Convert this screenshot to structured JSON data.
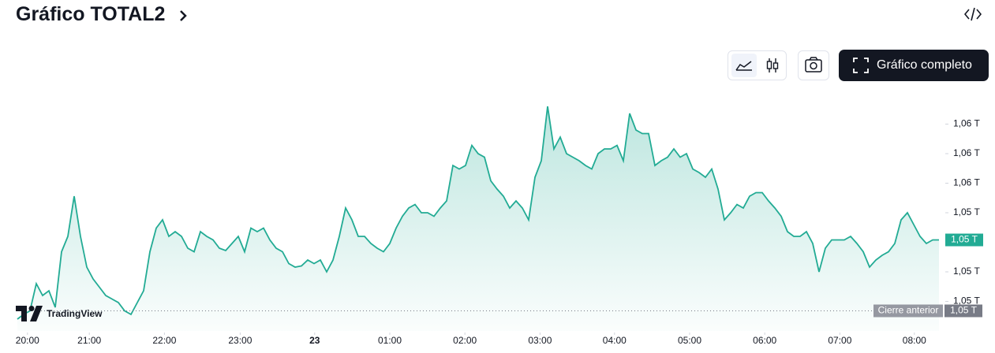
{
  "header": {
    "title": "Gráfico TOTAL2",
    "button": "Gráfico completo"
  },
  "chart_data": {
    "type": "line",
    "color": "#22ab94",
    "values": [
      1.046,
      1.0464,
      1.0467,
      1.049,
      1.048,
      1.0484,
      1.047,
      1.0517,
      1.053,
      1.0564,
      1.053,
      1.0504,
      1.0494,
      1.0487,
      1.048,
      1.0477,
      1.0474,
      1.0467,
      1.0464,
      1.0474,
      1.0484,
      1.0517,
      1.0537,
      1.0544,
      1.053,
      1.0534,
      1.053,
      1.052,
      1.0517,
      1.0534,
      1.053,
      1.0527,
      1.052,
      1.0518,
      1.0524,
      1.053,
      1.0517,
      1.0537,
      1.0534,
      1.0537,
      1.0527,
      1.052,
      1.0517,
      1.0507,
      1.0504,
      1.0505,
      1.051,
      1.0507,
      1.051,
      1.05,
      1.051,
      1.053,
      1.0554,
      1.0544,
      1.053,
      1.053,
      1.0524,
      1.052,
      1.0517,
      1.0524,
      1.0537,
      1.0547,
      1.0554,
      1.0557,
      1.055,
      1.055,
      1.0547,
      1.0554,
      1.056,
      1.059,
      1.0587,
      1.059,
      1.0607,
      1.06,
      1.0597,
      1.0577,
      1.057,
      1.0564,
      1.0554,
      1.056,
      1.0554,
      1.0544,
      1.058,
      1.0594,
      1.064,
      1.0604,
      1.0614,
      1.06,
      1.0597,
      1.0594,
      1.059,
      1.0587,
      1.06,
      1.0604,
      1.0604,
      1.0607,
      1.0594,
      1.0634,
      1.062,
      1.0617,
      1.0617,
      1.059,
      1.0594,
      1.0597,
      1.0604,
      1.0597,
      1.06,
      1.0587,
      1.0584,
      1.058,
      1.0587,
      1.057,
      1.0544,
      1.055,
      1.0557,
      1.0554,
      1.0564,
      1.0567,
      1.0567,
      1.056,
      1.0554,
      1.0547,
      1.0534,
      1.053,
      1.053,
      1.0534,
      1.0524,
      1.05,
      1.052,
      1.0527,
      1.0527,
      1.0527,
      1.053,
      1.0524,
      1.0517,
      1.0504,
      1.051,
      1.0514,
      1.0517,
      1.0524,
      1.0544,
      1.055,
      1.054,
      1.053,
      1.0524,
      1.0527,
      1.0527
    ],
    "xlim": [
      0,
      146
    ],
    "xticks": [
      {
        "value": 1.6,
        "label": "20:00"
      },
      {
        "value": 11.4,
        "label": "21:00"
      },
      {
        "value": 23.3,
        "label": "22:00"
      },
      {
        "value": 35.3,
        "label": "23:00"
      },
      {
        "value": 47.1,
        "label": "23"
      },
      {
        "value": 59,
        "label": "01:00"
      },
      {
        "value": 70.9,
        "label": "02:00"
      },
      {
        "value": 82.8,
        "label": "03:00"
      },
      {
        "value": 94.6,
        "label": "04:00"
      },
      {
        "value": 106.5,
        "label": "05:00"
      },
      {
        "value": 118.4,
        "label": "06:00"
      },
      {
        "value": 130.3,
        "label": "07:00"
      },
      {
        "value": 142.1,
        "label": "08:00"
      }
    ],
    "ylim": [
      1.045,
      1.065
    ],
    "yticks": [
      {
        "value": 1.0625,
        "label": "1,06 T"
      },
      {
        "value": 1.06,
        "label": "1,06 T"
      },
      {
        "value": 1.0575,
        "label": "1,06 T"
      },
      {
        "value": 1.055,
        "label": "1,05 T"
      },
      {
        "value": 1.05,
        "label": "1,05 T"
      },
      {
        "value": 1.0475,
        "label": "1,05 T"
      }
    ],
    "last_price": {
      "value": 1.0527,
      "label": "1,05 T"
    },
    "previous_close": {
      "value": 1.0467,
      "label": "1,05 T",
      "name": "Cierre anterior"
    },
    "logo": "TradingView"
  }
}
